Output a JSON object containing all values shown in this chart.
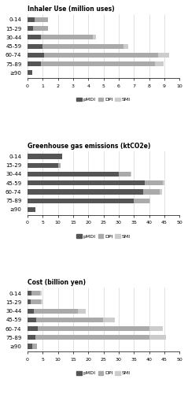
{
  "charts": [
    {
      "title": "Inhaler Use (million uses)",
      "xlabel_max": 10.0,
      "xlabel_ticks": [
        0.0,
        1.0,
        2.0,
        3.0,
        4.0,
        5.0,
        6.0,
        7.0,
        8.0,
        9.0,
        10.0
      ],
      "categories": [
        "≥90",
        "75-89",
        "60-74",
        "45-59",
        "30-44",
        "15-29",
        "0-14"
      ],
      "pMDI": [
        0.3,
        0.9,
        1.1,
        1.0,
        0.9,
        0.35,
        0.45
      ],
      "DPI": [
        0.0,
        7.5,
        7.5,
        5.3,
        3.4,
        1.0,
        0.9
      ],
      "SMI": [
        0.0,
        0.55,
        0.7,
        0.35,
        0.2,
        0.0,
        0.0
      ]
    },
    {
      "title": "Greenhouse gas emissions (ktCO2e)",
      "xlabel_max": 50.0,
      "xlabel_ticks": [
        0.0,
        5.0,
        10.0,
        15.0,
        20.0,
        25.0,
        30.0,
        35.0,
        40.0,
        45.0,
        50.0
      ],
      "categories": [
        "≥90",
        "75-89",
        "60-74",
        "45-59",
        "30-44",
        "15-29",
        "0-14"
      ],
      "pMDI": [
        2.5,
        35.0,
        38.0,
        38.5,
        30.0,
        10.0,
        11.5
      ],
      "DPI": [
        0.0,
        5.0,
        5.5,
        6.0,
        4.0,
        1.0,
        0.0
      ],
      "SMI": [
        0.0,
        0.5,
        0.8,
        0.5,
        0.2,
        0.0,
        0.0
      ]
    },
    {
      "title": "Cost (billion yen)",
      "xlabel_max": 50.0,
      "xlabel_ticks": [
        0.0,
        5.0,
        10.0,
        15.0,
        20.0,
        25.0,
        30.0,
        35.0,
        40.0,
        45.0,
        50.0
      ],
      "categories": [
        "≥90",
        "75-89",
        "60-74",
        "45-59",
        "30-44",
        "15-29",
        "0-14"
      ],
      "pMDI": [
        1.5,
        2.5,
        3.5,
        2.8,
        2.2,
        1.0,
        1.2
      ],
      "DPI": [
        1.5,
        37.5,
        36.5,
        22.0,
        14.5,
        3.5,
        3.0
      ],
      "SMI": [
        0.0,
        5.5,
        4.5,
        4.0,
        2.5,
        0.5,
        0.5
      ]
    }
  ],
  "colors": {
    "pMDI": "#555555",
    "DPI": "#aaaaaa",
    "SMI": "#cccccc"
  },
  "bar_height": 0.55,
  "categories_fixed": [
    "≥90",
    "75-89",
    "60-74",
    "45-59",
    "30-44",
    "15-29",
    "0-14"
  ]
}
